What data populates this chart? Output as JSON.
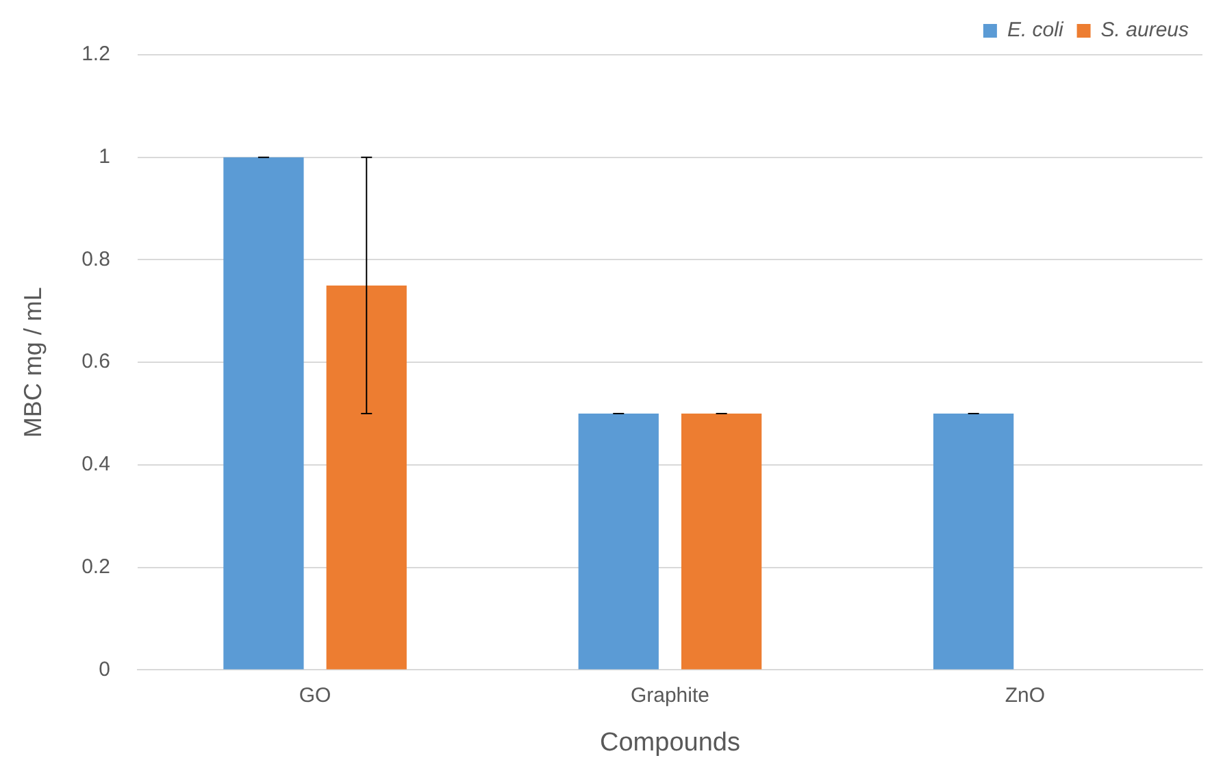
{
  "chart_data": {
    "type": "bar",
    "xlabel": "Compounds",
    "ylabel": "MBC mg / mL",
    "categories": [
      "GO",
      "Graphite",
      "ZnO"
    ],
    "series": [
      {
        "name": "E. coli",
        "color": "#5b9bd5",
        "values": [
          1,
          0.5,
          0.5
        ],
        "errors": [
          0,
          0,
          0
        ]
      },
      {
        "name": "S. aureus",
        "color": "#ed7d31",
        "values": [
          0.75,
          0.5,
          0
        ],
        "errors": [
          0.25,
          0,
          null
        ]
      }
    ],
    "ylim": [
      0,
      1.2
    ],
    "yticks": [
      0,
      0.2,
      0.4,
      0.6,
      0.8,
      1,
      1.2
    ],
    "grid": "y",
    "legend": "top right"
  }
}
